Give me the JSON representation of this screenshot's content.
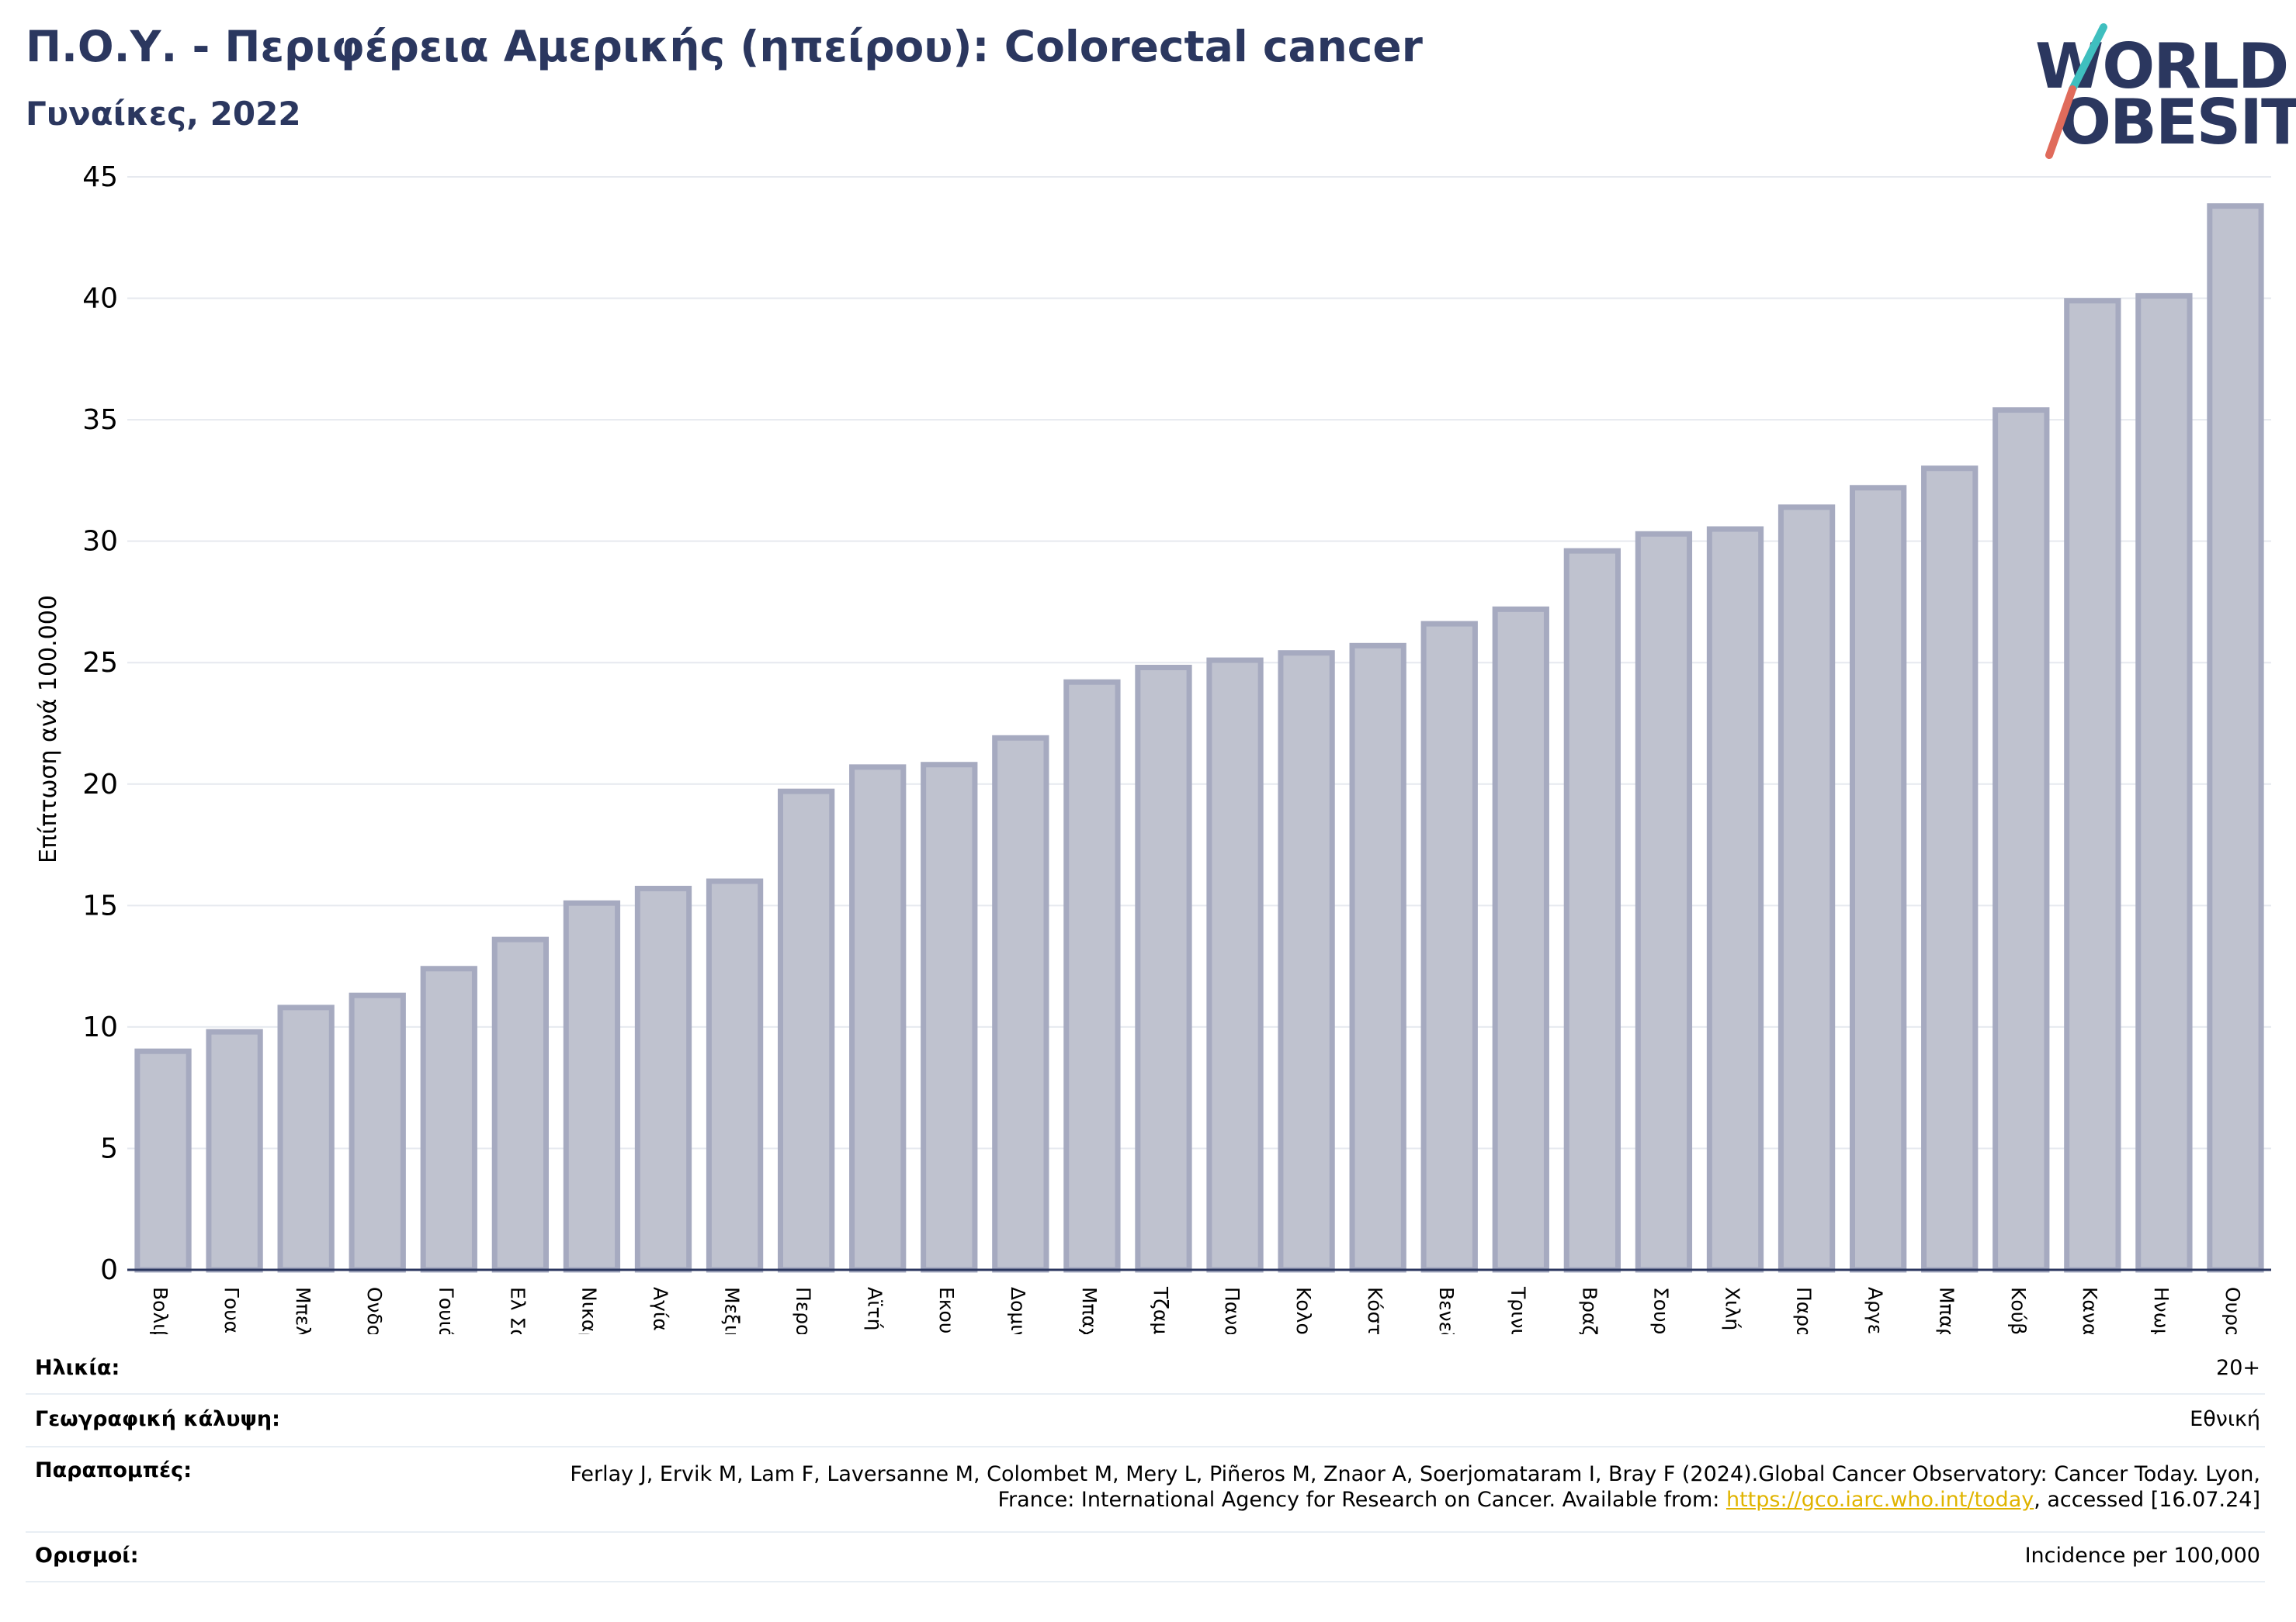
{
  "header": {
    "title": "Π.Ο.Υ. - Περιφέρεια Αμερικής (ηπείρου): Colorectal cancer",
    "subtitle": "Γυναίκες, 2022"
  },
  "logo": {
    "line1": "WORLD",
    "line2": "OBESITY",
    "navy": "#2b375f",
    "teal": "#3fbfbf",
    "coral": "#e06b5b"
  },
  "chart_data": {
    "type": "bar",
    "ylabel": "Επίπτωση ανά 100.000",
    "ylim": [
      0,
      45
    ],
    "yticks": [
      0,
      5,
      10,
      15,
      20,
      25,
      30,
      35,
      40,
      45
    ],
    "grid": true,
    "bar_fill": "#bfc2cf",
    "bar_stroke": "#a6aac0",
    "categories": [
      "Βολιβία",
      "Γουατεμάλα",
      "Μπελίζ",
      "Ονδούρα",
      "Γουιάνα",
      "Ελ Σαλβαδόρ",
      "Νικαράγουα",
      "Αγία Λουκία",
      "Μεξικό",
      "Περού",
      "Αϊτή",
      "Εκουαδόρ",
      "Δομινικανή Δημοκρατία",
      "Μπαχάμες",
      "Τζαμάικα",
      "Παναμάς",
      "Κολομβία",
      "Κόστα Ρίκα",
      "Βενεζουέλα",
      "Τρινιντάντ και Τομπάγκο",
      "Βραζιλία",
      "Σουρινάμ",
      "Χιλή",
      "Παραγουάη",
      "Αργεντινή",
      "Μπαρμπάντος",
      "Κούβα",
      "Καναδάς",
      "Ηνωμένες Πολιτείες",
      "Ουρουγουάη"
    ],
    "values": [
      9.0,
      9.8,
      10.8,
      11.3,
      12.4,
      13.6,
      15.1,
      15.7,
      16.0,
      19.7,
      20.7,
      20.8,
      21.9,
      24.2,
      24.8,
      25.1,
      25.4,
      25.7,
      26.6,
      27.2,
      29.6,
      30.3,
      30.5,
      31.4,
      32.2,
      33.0,
      35.4,
      39.9,
      40.1,
      43.8
    ]
  },
  "meta": {
    "age_label": "Ηλικία:",
    "age_value": "20+",
    "coverage_label": "Γεωγραφική κάλυψη:",
    "coverage_value": "Εθνική",
    "refs_label": "Παραπομπές:",
    "refs_text_1": "Ferlay J, Ervik M, Lam F, Laversanne M, Colombet M, Mery L, Piñeros M, Znaor A, Soerjomataram I, Bray F (2024).Global Cancer Observatory: Cancer Today. Lyon, France: International Agency for Research on Cancer. Available from: ",
    "refs_link": "https://gco.iarc.who.int/today",
    "refs_text_2": ", accessed [16.07.24]",
    "defs_label": "Ορισμοί:",
    "defs_value": "Incidence per 100,000"
  }
}
